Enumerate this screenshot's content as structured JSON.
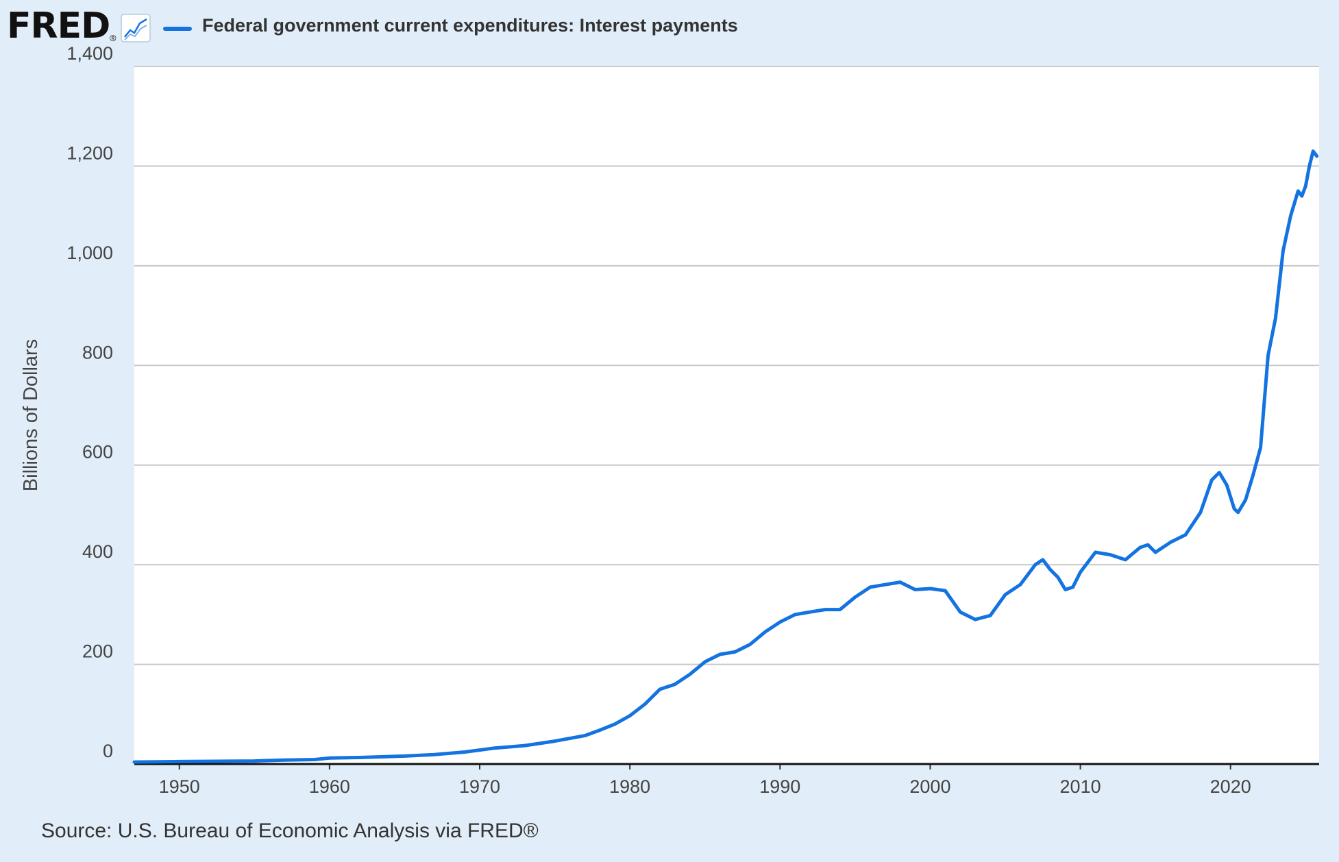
{
  "header": {
    "logo_text": "FRED",
    "logo_mark": "®",
    "graph_icon": "line-graph-icon",
    "legend_label": "Federal government current expenditures: Interest payments"
  },
  "colors": {
    "background": "#e1edf8",
    "plot_background": "#ffffff",
    "series": "#1373e0",
    "grid": "#c8c8c8"
  },
  "source": "Source: U.S. Bureau of Economic Analysis via FRED®",
  "chart_data": {
    "type": "line",
    "title": "",
    "xlabel": "",
    "ylabel": "Billions of Dollars",
    "xlim": [
      1947,
      2025.9
    ],
    "ylim": [
      0,
      1400
    ],
    "grid": true,
    "legend_placement": "top-left",
    "x_ticks": [
      1950,
      1960,
      1970,
      1980,
      1990,
      2000,
      2010,
      2020
    ],
    "x_tick_labels": [
      "1950",
      "1960",
      "1970",
      "1980",
      "1990",
      "2000",
      "2010",
      "2020"
    ],
    "y_ticks": [
      0,
      200,
      400,
      600,
      800,
      1000,
      1200,
      1400
    ],
    "y_tick_labels": [
      "0",
      "200",
      "400",
      "600",
      "800",
      "1,000",
      "1,200",
      "1,400"
    ],
    "series": [
      {
        "name": "Federal government current expenditures: Interest payments",
        "x": [
          1947,
          1950,
          1955,
          1957,
          1959,
          1960,
          1962,
          1965,
          1967,
          1969,
          1970,
          1971,
          1973,
          1975,
          1977,
          1978,
          1979,
          1980,
          1981,
          1982,
          1983,
          1984,
          1985,
          1986,
          1987,
          1988,
          1989,
          1990,
          1991,
          1992,
          1993,
          1994,
          1995,
          1996,
          1997,
          1998,
          1999,
          2000,
          2001,
          2002,
          2003,
          2004,
          2005,
          2006,
          2007,
          2007.5,
          2008,
          2008.5,
          2009,
          2009.5,
          2010,
          2011,
          2012,
          2013,
          2014,
          2014.5,
          2015,
          2016,
          2017,
          2018,
          2018.75,
          2019.25,
          2019.75,
          2020.25,
          2020.5,
          2021,
          2021.5,
          2022,
          2022.5,
          2023,
          2023.5,
          2024,
          2024.5,
          2024.75,
          2025,
          2025.25,
          2025.5,
          2025.75
        ],
        "y": [
          4,
          5,
          6,
          8,
          9,
          12,
          13,
          16,
          19,
          24,
          28,
          32,
          37,
          46,
          57,
          68,
          80,
          97,
          120,
          150,
          160,
          180,
          205,
          220,
          225,
          240,
          265,
          285,
          300,
          305,
          310,
          310,
          335,
          355,
          360,
          365,
          350,
          352,
          348,
          305,
          290,
          298,
          340,
          360,
          400,
          410,
          390,
          375,
          350,
          355,
          385,
          425,
          420,
          410,
          435,
          440,
          425,
          445,
          460,
          505,
          570,
          585,
          560,
          512,
          505,
          530,
          580,
          635,
          820,
          895,
          1030,
          1100,
          1150,
          1140,
          1160,
          1200,
          1230,
          1220
        ]
      }
    ]
  }
}
